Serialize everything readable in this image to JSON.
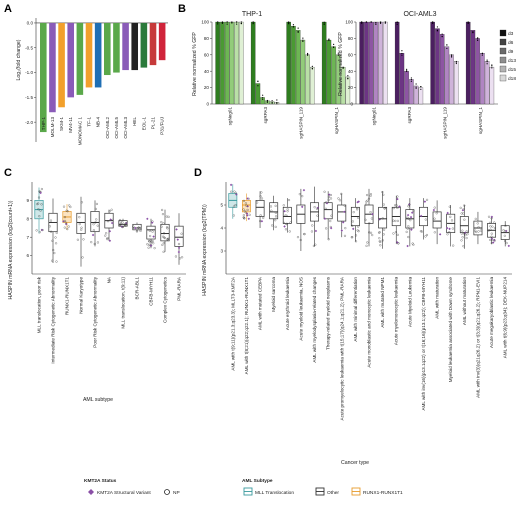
{
  "panels": [
    "A",
    "B",
    "C",
    "D"
  ],
  "chart_data": [
    {
      "id": "A",
      "type": "bar",
      "title": "",
      "xlabel": "",
      "ylabel": "Log₂(fold change)",
      "ylim": [
        -2.4,
        0.1
      ],
      "yticks": [
        0,
        -0.5,
        -1.0,
        -1.5,
        -2.0
      ],
      "categories": [
        "THP-1",
        "MOLM-13",
        "SKM-1",
        "MV4-11",
        "MONOMAC 1",
        "TF-1",
        "NB-4",
        "OCI-AML2",
        "OCI-AML5",
        "OCI-AML3",
        "HEL",
        "EOL-1",
        "PL-21",
        "P31/FUJ"
      ],
      "values": [
        -2.2,
        -1.8,
        -1.7,
        -1.5,
        -1.45,
        -1.3,
        -1.3,
        -1.05,
        -1.0,
        -0.95,
        -0.95,
        -0.9,
        -0.85,
        -0.75
      ],
      "colors": [
        "#5aa84a",
        "#8a5bb8",
        "#f2a02c",
        "#8a5bb8",
        "#5aa84a",
        "#f2a02c",
        "#1f6fb4",
        "#5aa84a",
        "#5aa84a",
        "#8a5bb8",
        "#222222",
        "#2b7a3b",
        "#c63a3a",
        "#d0243a"
      ]
    },
    {
      "id": "B-THP1",
      "type": "bar",
      "title": "THP-1",
      "ylabel": "Relative normalized % GFP",
      "ylim": [
        0,
        100
      ],
      "yticks": [
        0,
        20,
        40,
        60,
        80,
        100
      ],
      "categories": [
        "sgNeg01",
        "sgRPA3",
        "sgHASPIN_119",
        "sgHASPIN_1"
      ],
      "timepoints": [
        "d3",
        "d6",
        "d9",
        "d13",
        "d15",
        "d18"
      ],
      "series": [
        {
          "name": "d3",
          "values": [
            100,
            100,
            100,
            100
          ]
        },
        {
          "name": "d6",
          "values": [
            100,
            25,
            95,
            78
          ]
        },
        {
          "name": "d9",
          "values": [
            100,
            8,
            90,
            70
          ]
        },
        {
          "name": "d13",
          "values": [
            100,
            4,
            78,
            60
          ]
        },
        {
          "name": "d15",
          "values": [
            100,
            3,
            60,
            45
          ]
        },
        {
          "name": "d18",
          "values": [
            100,
            2,
            45,
            33
          ]
        }
      ]
    },
    {
      "id": "B-OCIAML3",
      "type": "bar",
      "title": "OCI-AML3",
      "ylabel": "Relative normalized % GFP",
      "ylim": [
        0,
        100
      ],
      "yticks": [
        0,
        20,
        40,
        60,
        80,
        100
      ],
      "categories": [
        "sgNeg01",
        "sgRPA3",
        "sgHASPIN_119",
        "sgHASPIN_1"
      ],
      "legend_title": "",
      "series": [
        {
          "name": "d3",
          "values": [
            100,
            100,
            100,
            100
          ]
        },
        {
          "name": "d6",
          "values": [
            100,
            62,
            92,
            90
          ]
        },
        {
          "name": "d9",
          "values": [
            100,
            40,
            85,
            80
          ]
        },
        {
          "name": "d13",
          "values": [
            100,
            30,
            70,
            62
          ]
        },
        {
          "name": "d15",
          "values": [
            100,
            22,
            60,
            52
          ]
        },
        {
          "name": "d18",
          "values": [
            100,
            20,
            52,
            45
          ]
        }
      ]
    },
    {
      "id": "C",
      "type": "box",
      "ylabel": "HASPIN mRNA expression (log2(count+1))",
      "xlabel": "AML subtype",
      "ylim": [
        5,
        10
      ],
      "yticks": [
        6,
        7,
        8,
        9
      ],
      "categories": [
        "MLL translocation, poor risk",
        "Intermediate Risk Cytogenetic Abnormality",
        "RUNX1-RUNX1T1",
        "Normal Karyotype",
        "Poor Risk Cytogenetic Abnormality",
        "NA",
        "MLL translocation, t(9;11)",
        "BCR-ABL1",
        "CBFB-MYH11",
        "Complex Cytogenetics",
        "PML-RARA"
      ],
      "boxes": [
        {
          "q1": 8.0,
          "median": 8.5,
          "q3": 9.0,
          "min": 7.2,
          "max": 9.7,
          "status": "MLL"
        },
        {
          "q1": 7.3,
          "median": 7.8,
          "q3": 8.3,
          "min": 5.6,
          "max": 9.1,
          "status": "NP"
        },
        {
          "q1": 7.8,
          "median": 8.1,
          "q3": 8.4,
          "min": 7.4,
          "max": 8.8,
          "status": "RUNX1"
        },
        {
          "q1": 7.2,
          "median": 7.8,
          "q3": 8.3,
          "min": 5.4,
          "max": 9.2,
          "status": "NP"
        },
        {
          "q1": 7.3,
          "median": 7.8,
          "q3": 8.4,
          "min": 6.5,
          "max": 9.0,
          "status": "NP"
        },
        {
          "q1": 7.5,
          "median": 7.9,
          "q3": 8.3,
          "min": 6.8,
          "max": 8.5,
          "status": "NP"
        },
        {
          "q1": 7.6,
          "median": 7.7,
          "q3": 7.9,
          "min": 7.5,
          "max": 8.0,
          "status": "NP"
        },
        {
          "q1": 7.4,
          "median": 7.5,
          "q3": 7.7,
          "min": 7.3,
          "max": 7.8,
          "status": "NP"
        },
        {
          "q1": 6.9,
          "median": 7.4,
          "q3": 7.6,
          "min": 6.4,
          "max": 8.0,
          "status": "NP"
        },
        {
          "q1": 6.8,
          "median": 7.2,
          "q3": 7.7,
          "min": 6.2,
          "max": 8.5,
          "status": "NP"
        },
        {
          "q1": 6.5,
          "median": 7.0,
          "q3": 7.6,
          "min": 5.5,
          "max": 8.3,
          "status": "NP"
        }
      ]
    },
    {
      "id": "D",
      "type": "box",
      "ylabel": "HASPIN mRNA expression (log2(TPM))",
      "xlabel": "Cancer type",
      "ylim": [
        2,
        6
      ],
      "yticks": [
        3,
        4,
        5
      ],
      "categories": [
        "AML with t(9;11)(p21.3;q23.3); MLLT3-KMT2A",
        "AML with t(8;21)(q22;q22.1); RUNX1-RUNX1T1",
        "AML with mutated CEBPA",
        "Myeloid sarcoma",
        "Acute erythroid leukaemia",
        "Acute myeloid leukaemia, NOS",
        "AML with myelodysplasia-related changes",
        "Therapy-related myeloid neoplasms",
        "Acute promyelocytic leukaemia with t(15;17)(q24.1;q21.2); PML-RARA",
        "AML with minimal differentiation",
        "Acute monoblastic and monocytic leukaemia",
        "AML with mutated NPM1",
        "Acute myelomonocytic leukaemia",
        "Acute Myeloid Leukemia",
        "AML with inv(16)(p13.1q22) or t(16;16)(p13.1;q22); CBFB-MYH11",
        "AML with maturation",
        "Myeloid leukaemia associated with Down syndrome",
        "AML without maturation",
        "AML with inv(3)(q21q26.2) or t(3;3)(q21;q26.2); RPN1-EVI1",
        "Acute megakaryoblastic leukaemia",
        "AML with t(6;9)(p23;q34); DEK-NUP214"
      ],
      "boxes": [
        {
          "q1": 4.9,
          "median": 5.2,
          "q3": 5.5,
          "min": 4.4,
          "max": 5.9,
          "status": "MLL"
        },
        {
          "q1": 4.7,
          "median": 5.0,
          "q3": 5.2,
          "min": 4.3,
          "max": 5.5,
          "status": "RUNX1"
        },
        {
          "q1": 4.5,
          "median": 4.9,
          "q3": 5.2,
          "min": 4.0,
          "max": 5.6,
          "status": "NP"
        },
        {
          "q1": 4.4,
          "median": 4.7,
          "q3": 5.1,
          "min": 3.9,
          "max": 5.4,
          "status": "NP"
        },
        {
          "q1": 4.2,
          "median": 4.5,
          "q3": 4.9,
          "min": 3.8,
          "max": 5.3,
          "status": "NP"
        },
        {
          "q1": 4.2,
          "median": 4.6,
          "q3": 5.0,
          "min": 3.0,
          "max": 5.7,
          "status": "NP"
        },
        {
          "q1": 4.3,
          "median": 4.7,
          "q3": 5.1,
          "min": 3.2,
          "max": 5.8,
          "status": "NP"
        },
        {
          "q1": 4.4,
          "median": 4.8,
          "q3": 5.1,
          "min": 3.5,
          "max": 5.6,
          "status": "NP"
        },
        {
          "q1": 4.3,
          "median": 4.7,
          "q3": 5.0,
          "min": 3.6,
          "max": 5.5,
          "status": "NP"
        },
        {
          "q1": 4.1,
          "median": 4.5,
          "q3": 4.9,
          "min": 3.4,
          "max": 5.3,
          "status": "NP"
        },
        {
          "q1": 4.2,
          "median": 4.6,
          "q3": 5.0,
          "min": 3.2,
          "max": 5.7,
          "status": "NP"
        },
        {
          "q1": 4.0,
          "median": 4.4,
          "q3": 4.9,
          "min": 3.1,
          "max": 5.6,
          "status": "NP"
        },
        {
          "q1": 4.1,
          "median": 4.5,
          "q3": 4.9,
          "min": 3.3,
          "max": 5.4,
          "status": "NP"
        },
        {
          "q1": 4.0,
          "median": 4.4,
          "q3": 4.8,
          "min": 3.2,
          "max": 5.3,
          "status": "NP"
        },
        {
          "q1": 4.1,
          "median": 4.5,
          "q3": 4.9,
          "min": 3.5,
          "max": 5.3,
          "status": "NP"
        },
        {
          "q1": 4.0,
          "median": 4.3,
          "q3": 4.7,
          "min": 3.3,
          "max": 5.2,
          "status": "NP"
        },
        {
          "q1": 3.8,
          "median": 4.2,
          "q3": 4.6,
          "min": 3.2,
          "max": 5.0,
          "status": "NP"
        },
        {
          "q1": 3.8,
          "median": 4.1,
          "q3": 4.5,
          "min": 3.1,
          "max": 5.0,
          "status": "NP"
        },
        {
          "q1": 3.7,
          "median": 4.0,
          "q3": 4.3,
          "min": 3.3,
          "max": 4.7,
          "status": "NP"
        },
        {
          "q1": 3.6,
          "median": 3.9,
          "q3": 4.2,
          "min": 3.3,
          "max": 4.5,
          "status": "NP"
        },
        {
          "q1": 3.5,
          "median": 3.8,
          "q3": 4.1,
          "min": 3.2,
          "max": 4.3,
          "status": "NP"
        }
      ]
    }
  ],
  "legend": {
    "status_title": "KMT2A Status",
    "status_items": [
      "KMT2A Structural Variant",
      "NP"
    ],
    "subtype_title": "AML Subtype",
    "subtype_items": [
      "MLL Translocation",
      "Other",
      "RUNX1-RUNX1T1"
    ],
    "colors": {
      "MLL": "#3a9a9e",
      "RUNX1": "#e79b2c",
      "Other": "#333333",
      "NP": "#222222",
      "sv": "#8a4fa6"
    }
  },
  "b_legend": [
    "d3",
    "d6",
    "d9",
    "d13",
    "d15",
    "d18"
  ]
}
